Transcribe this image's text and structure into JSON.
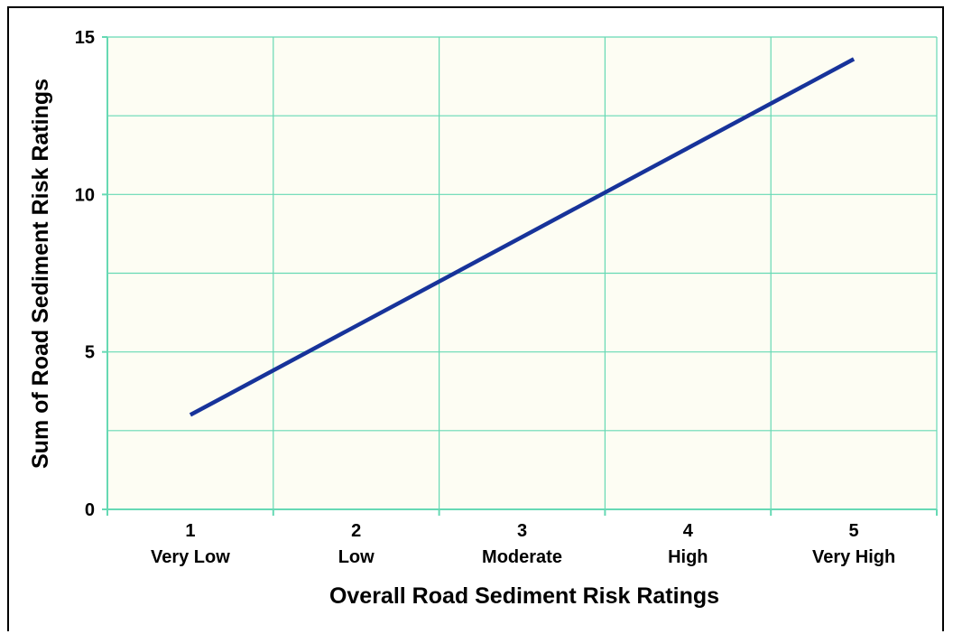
{
  "chart_data": {
    "type": "line",
    "x": [
      1,
      5
    ],
    "categories": [
      "1\nVery Low",
      "2\nLow",
      "3\nModerate",
      "4\nHigh",
      "5\nVery High"
    ],
    "category_numbers": [
      "1",
      "2",
      "3",
      "4",
      "5"
    ],
    "category_labels": [
      "Very Low",
      "Low",
      "Moderate",
      "High",
      "Very High"
    ],
    "series": [
      {
        "values": [
          3.0,
          14.3
        ]
      }
    ],
    "title": "",
    "xlabel": "Overall Road Sediment Risk Ratings",
    "ylabel": "Sum of Road Sediment Risk Ratings",
    "ylim": [
      0,
      15
    ],
    "yticks": [
      "0",
      "5",
      "10",
      "15"
    ],
    "grid": true,
    "colors": {
      "line": "#17339a",
      "grid": "#66d9b4",
      "plot_bg": "#fdfdf3"
    }
  }
}
